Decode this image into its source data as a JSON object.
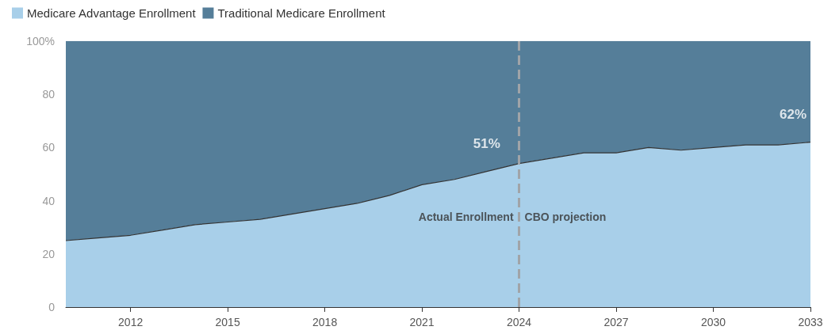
{
  "chart_data": {
    "type": "area",
    "stacked": true,
    "legend": "top left",
    "grid": false,
    "marker": "none",
    "x": [
      2010,
      2011,
      2012,
      2013,
      2014,
      2015,
      2016,
      2017,
      2018,
      2019,
      2020,
      2021,
      2022,
      2023,
      2024,
      2025,
      2026,
      2027,
      2028,
      2029,
      2030,
      2031,
      2032,
      2033
    ],
    "series": [
      {
        "name": "Medicare Advantage Enrollment",
        "color": "#a8cfe9",
        "values": [
          25,
          26,
          27,
          29,
          31,
          32,
          33,
          35,
          37,
          39,
          42,
          46,
          48,
          51,
          54,
          56,
          58,
          58,
          60,
          59,
          60,
          61,
          61,
          62
        ]
      },
      {
        "name": "Traditional Medicare Enrollment",
        "color": "#557e99",
        "values": [
          75,
          74,
          73,
          71,
          69,
          68,
          67,
          65,
          63,
          61,
          58,
          54,
          52,
          49,
          46,
          44,
          42,
          42,
          40,
          41,
          40,
          39,
          39,
          38
        ]
      }
    ],
    "xlim": [
      2010,
      2033
    ],
    "xticks": [
      2012,
      2015,
      2018,
      2021,
      2024,
      2027,
      2030,
      2033
    ],
    "ylim": [
      0,
      100
    ],
    "yticks": [
      0,
      20,
      40,
      60,
      80,
      {
        "value": 100,
        "label": "100%"
      }
    ],
    "ref_lines": [
      {
        "axis": "x",
        "value": 2024,
        "color": "#a0a4a8",
        "line_style": "dashed"
      }
    ],
    "annotations": [
      {
        "text": "51%",
        "x": 2023,
        "y": 51
      },
      {
        "text": "62%",
        "x": 2033,
        "y": 62
      },
      {
        "text": "Actual Enrollment",
        "x": 2024,
        "y": 34
      },
      {
        "text": "CBO projection",
        "x": 2024,
        "y": 34
      }
    ]
  }
}
